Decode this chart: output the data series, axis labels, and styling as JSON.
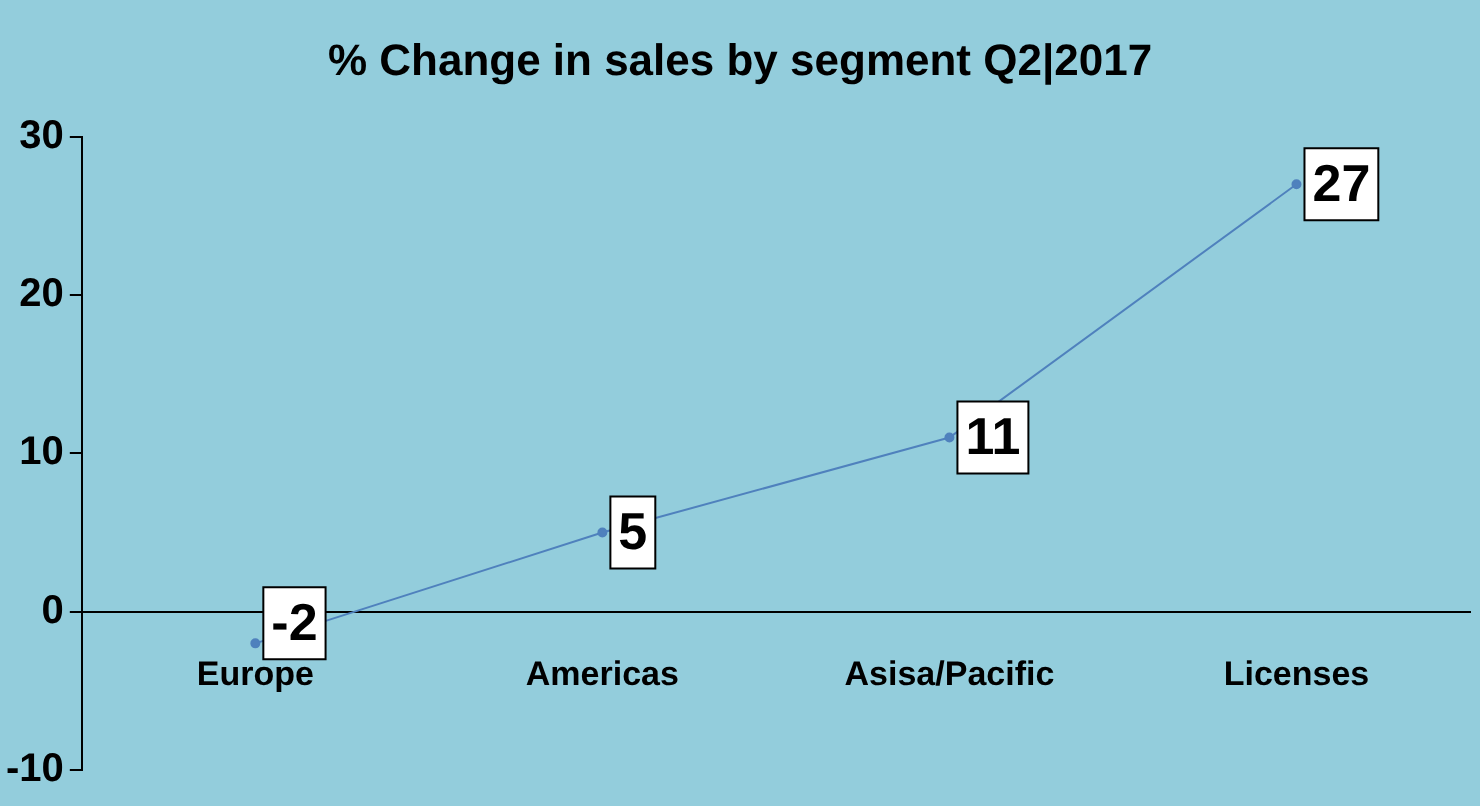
{
  "chart_data": {
    "type": "line",
    "title": "% Change in sales by segment Q2|2017",
    "categories": [
      "Europe",
      "Americas",
      "Asisa/Pacific",
      "Licenses"
    ],
    "series": [
      {
        "color": "#4f81bd",
        "values": [
          -2,
          5,
          11,
          27
        ]
      }
    ],
    "ylim": [
      -10,
      30
    ],
    "yticks": [
      -10,
      0,
      10,
      20,
      30
    ],
    "grid": false,
    "legend": false,
    "marker": "circle",
    "data_labels": true
  }
}
